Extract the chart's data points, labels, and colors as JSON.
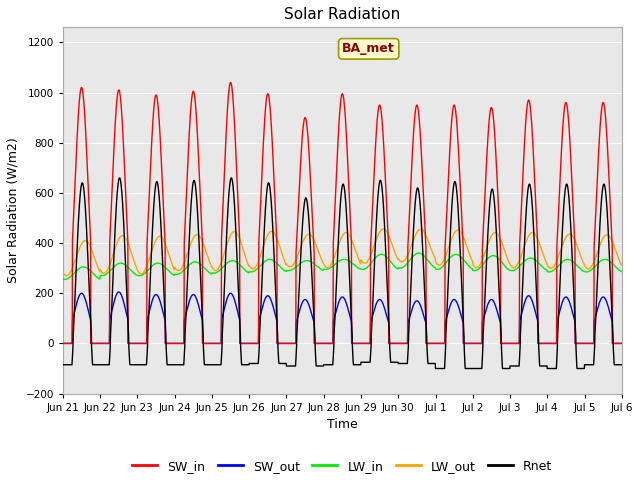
{
  "title": "Solar Radiation",
  "xlabel": "Time",
  "ylabel": "Solar Radiation (W/m2)",
  "ylim": [
    -200,
    1260
  ],
  "yticks": [
    -200,
    0,
    200,
    400,
    600,
    800,
    1000,
    1200
  ],
  "fig_bg_color": "#ffffff",
  "plot_bg_color": "#e8e8e8",
  "annotation_text": "BA_met",
  "annotation_bg": "#ffffcc",
  "annotation_border": "#8b0000",
  "legend_entries": [
    "SW_in",
    "SW_out",
    "LW_in",
    "LW_out",
    "Rnet"
  ],
  "line_colors": {
    "SW_in": "#ff0000",
    "SW_out": "#0000ff",
    "LW_in": "#00ee00",
    "LW_out": "#ffa500",
    "Rnet": "#000000"
  },
  "n_days": 15,
  "SW_in_peaks": [
    1020,
    1010,
    990,
    1005,
    1040,
    995,
    900,
    995,
    950,
    950,
    950,
    940,
    970,
    960,
    960
  ],
  "SW_out_peaks": [
    200,
    205,
    195,
    195,
    200,
    190,
    175,
    185,
    175,
    170,
    175,
    175,
    190,
    185,
    185
  ],
  "LW_in_base": [
    280,
    295,
    295,
    300,
    305,
    310,
    310,
    315,
    325,
    330,
    325,
    320,
    315,
    310,
    310
  ],
  "LW_in_amp": [
    25,
    25,
    25,
    25,
    25,
    25,
    20,
    20,
    30,
    30,
    30,
    30,
    25,
    25,
    25
  ],
  "LW_out_base": [
    340,
    355,
    352,
    362,
    368,
    372,
    370,
    372,
    388,
    390,
    382,
    372,
    372,
    368,
    365
  ],
  "LW_out_amp": [
    70,
    75,
    75,
    72,
    78,
    75,
    65,
    70,
    68,
    65,
    70,
    70,
    70,
    68,
    68
  ],
  "Rnet_peaks": [
    640,
    660,
    645,
    650,
    660,
    640,
    580,
    635,
    650,
    620,
    645,
    615,
    635,
    635,
    635
  ],
  "Rnet_night_min": [
    -85,
    -85,
    -85,
    -85,
    -85,
    -80,
    -90,
    -85,
    -75,
    -80,
    -100,
    -100,
    -90,
    -100,
    -85
  ],
  "pts_per_day": 144
}
